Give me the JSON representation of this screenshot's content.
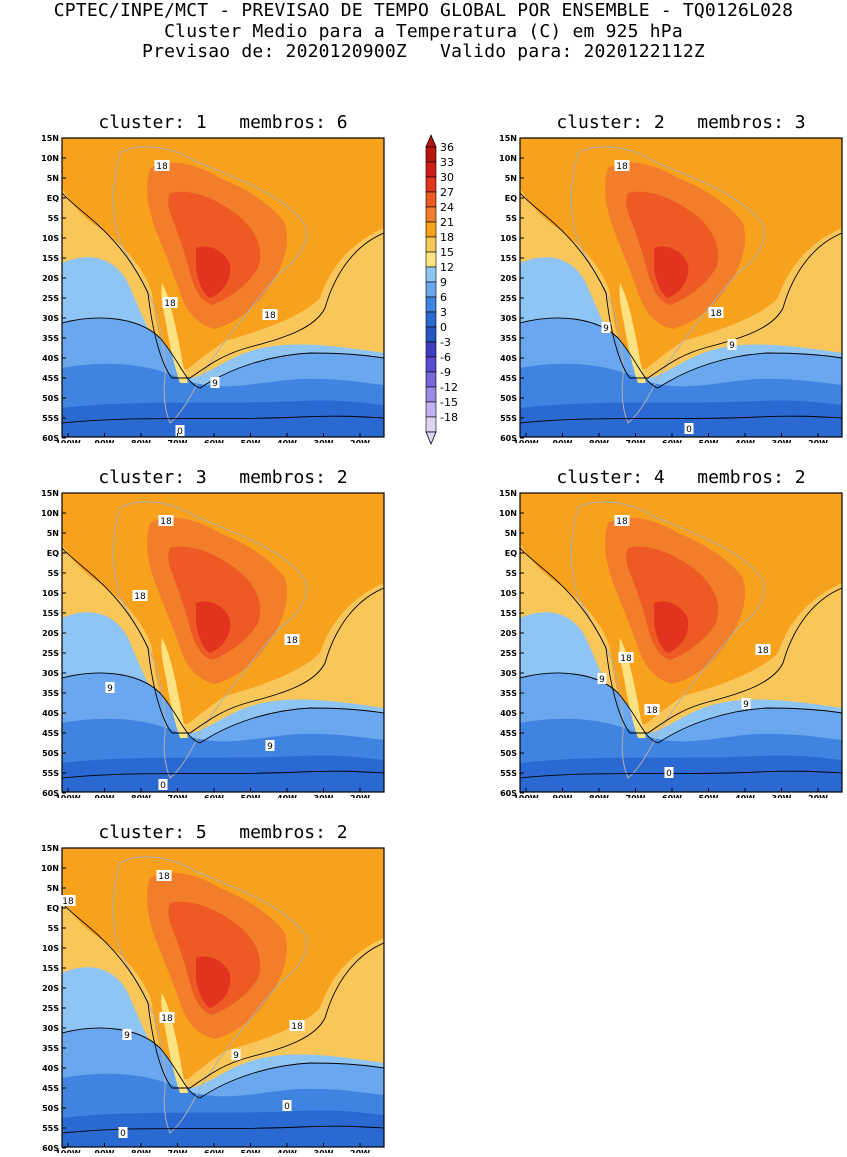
{
  "header": {
    "line1": "CPTEC/INPE/MCT - PREVISAO DE TEMPO GLOBAL POR ENSEMBLE - TQ0126L028",
    "line2": "Cluster Medio para a Temperatura (C) em 925 hPa",
    "line3": "Previsao de: 2020120900Z   Valido para: 2020122112Z"
  },
  "lat_labels": [
    "15N",
    "10N",
    "5N",
    "EQ",
    "5S",
    "10S",
    "15S",
    "20S",
    "25S",
    "30S",
    "35S",
    "40S",
    "45S",
    "50S",
    "55S",
    "60S"
  ],
  "lon_labels": [
    "100W",
    "90W",
    "80W",
    "70W",
    "60W",
    "50W",
    "40W",
    "30W",
    "20W"
  ],
  "colorbar": {
    "labels": [
      "36",
      "33",
      "30",
      "27",
      "24",
      "21",
      "18",
      "15",
      "12",
      "9",
      "6",
      "3",
      "0",
      "-3",
      "-6",
      "-9",
      "-12",
      "-15",
      "-18"
    ],
    "colors": [
      "#b8140e",
      "#cf1e17",
      "#e1331d",
      "#ee5a23",
      "#f27d2a",
      "#f8a11c",
      "#f9c65a",
      "#fde282",
      "#8ec5f5",
      "#6ba7ee",
      "#3e84e0",
      "#2a68d2",
      "#2457c2",
      "#3f3ec0",
      "#5a4bd0",
      "#7866dc",
      "#9b89e6",
      "#c0b1f1",
      "#ddd4f8"
    ]
  },
  "panels": [
    {
      "title": "cluster: 1   membros: 6",
      "contour_labels": [
        "18",
        "18",
        "18",
        "9",
        "0"
      ]
    },
    {
      "title": "cluster: 2   membros: 3",
      "contour_labels": [
        "18",
        "18",
        "9",
        "9",
        "0"
      ]
    },
    {
      "title": "cluster: 3   membros: 2",
      "contour_labels": [
        "18",
        "18",
        "18",
        "9",
        "9",
        "0"
      ]
    },
    {
      "title": "cluster: 4   membros: 2",
      "contour_labels": [
        "18",
        "18",
        "18",
        "18",
        "9",
        "9",
        "0"
      ]
    },
    {
      "title": "cluster: 5   membros: 2",
      "contour_labels": [
        "18",
        "18",
        "18",
        "18",
        "9",
        "9",
        "0",
        "0"
      ]
    }
  ]
}
